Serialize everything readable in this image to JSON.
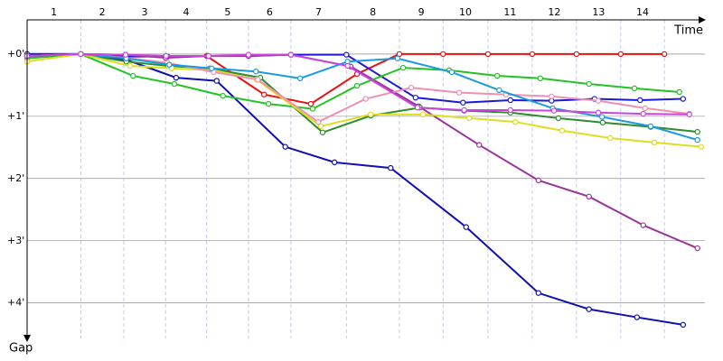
{
  "chart_data": {
    "type": "line",
    "x_label": "Time",
    "y_label": "Gap",
    "laps": [
      "1",
      "2",
      "3",
      "4",
      "5",
      "6",
      "7",
      "8",
      "9",
      "10",
      "11",
      "12",
      "13",
      "14"
    ],
    "lap_boundaries": [
      0,
      0.86,
      1.55,
      2.22,
      2.88,
      3.55,
      4.23,
      5.12,
      5.97,
      6.67,
      7.39,
      8.1,
      8.81,
      9.52,
      10.22
    ],
    "xlim": [
      0,
      10.87
    ],
    "ylim": [
      -0.55,
      4.57
    ],
    "yticks": [
      {
        "value": 0,
        "label": "+0'"
      },
      {
        "value": 1,
        "label": "+1'"
      },
      {
        "value": 2,
        "label": "+2'"
      },
      {
        "value": 3,
        "label": "+3'"
      },
      {
        "value": 4,
        "label": "+4'"
      }
    ],
    "grid": true,
    "series": [
      {
        "color": "#e81010",
        "x": [
          0,
          0.86,
          1.55,
          2.22,
          2.88,
          3.8,
          4.55,
          5.29,
          5.97,
          6.67,
          7.39,
          8.1,
          8.81,
          9.52,
          10.22
        ],
        "values": [
          0.03,
          0,
          0.03,
          0.04,
          0.03,
          0.65,
          0.8,
          0.32,
          0,
          0,
          0,
          0,
          0,
          0,
          0
        ]
      },
      {
        "color": "#1010b0",
        "x": [
          0,
          0.86,
          1.59,
          2.39,
          3.04,
          4.14,
          4.93,
          5.83,
          7.04,
          8.2,
          9.01,
          9.78,
          10.52
        ],
        "values": [
          0,
          0,
          0.09,
          0.38,
          0.43,
          1.49,
          1.74,
          1.83,
          2.78,
          3.84,
          4.1,
          4.23,
          4.35
        ]
      },
      {
        "color": "#1a1ad8",
        "x": [
          0,
          0.86,
          1.59,
          2.25,
          2.9,
          3.55,
          4.23,
          5.12,
          6.23,
          6.99,
          7.75,
          8.41,
          9.1,
          9.83,
          10.52
        ],
        "values": [
          0,
          0,
          0.04,
          0.04,
          0.03,
          0.03,
          0.01,
          0.01,
          0.7,
          0.78,
          0.74,
          0.75,
          0.72,
          0.74,
          0.72
        ]
      },
      {
        "color": "#993399",
        "x": [
          0,
          0.86,
          1.58,
          2.22,
          2.9,
          3.55,
          4.23,
          5.19,
          6.28,
          7.25,
          8.2,
          9.01,
          9.88,
          10.75
        ],
        "values": [
          0.03,
          0,
          0.01,
          0.06,
          0.03,
          0.03,
          0.01,
          0.2,
          0.84,
          1.46,
          2.03,
          2.29,
          2.75,
          3.12
        ]
      },
      {
        "color": "#22c322",
        "x": [
          0,
          0.86,
          1.7,
          2.36,
          3.14,
          3.87,
          4.58,
          5.29,
          6.03,
          6.77,
          7.54,
          8.23,
          9.01,
          9.74,
          10.46
        ],
        "values": [
          0.07,
          0,
          0.35,
          0.48,
          0.67,
          0.8,
          0.88,
          0.51,
          0.22,
          0.26,
          0.35,
          0.39,
          0.48,
          0.55,
          0.61
        ]
      },
      {
        "color": "#2e8b2e",
        "x": [
          0,
          0.86,
          1.59,
          2.26,
          2.93,
          3.74,
          4.74,
          5.51,
          6.3,
          7.01,
          7.75,
          8.52,
          9.23,
          10.0,
          10.75
        ],
        "values": [
          0.04,
          0,
          0.12,
          0.19,
          0.23,
          0.38,
          1.26,
          0.99,
          0.86,
          0.91,
          0.94,
          1.03,
          1.1,
          1.17,
          1.25
        ]
      },
      {
        "color": "#dddd22",
        "x": [
          0,
          0.86,
          1.65,
          2.32,
          2.99,
          3.68,
          4.71,
          5.51,
          6.35,
          7.09,
          7.83,
          8.58,
          9.35,
          10.06,
          10.81
        ],
        "values": [
          0.12,
          0,
          0.19,
          0.23,
          0.26,
          0.41,
          1.16,
          0.97,
          0.97,
          1.03,
          1.09,
          1.23,
          1.35,
          1.42,
          1.49
        ]
      },
      {
        "color": "#f090b0",
        "x": [
          0,
          0.86,
          1.58,
          2.25,
          2.99,
          3.7,
          4.67,
          5.43,
          6.16,
          6.93,
          7.68,
          8.41,
          9.16,
          9.91,
          10.62
        ],
        "values": [
          0.03,
          0,
          0.06,
          0.14,
          0.29,
          0.41,
          1.09,
          0.72,
          0.54,
          0.62,
          0.65,
          0.68,
          0.75,
          0.87,
          0.96
        ]
      },
      {
        "color": "#1a9ae0",
        "x": [
          0,
          0.86,
          1.59,
          2.28,
          2.96,
          3.67,
          4.38,
          5.14,
          5.94,
          6.81,
          7.57,
          8.43,
          9.22,
          10.0,
          10.75
        ],
        "values": [
          0.03,
          0,
          0.07,
          0.17,
          0.23,
          0.28,
          0.39,
          0.12,
          0.07,
          0.29,
          0.58,
          0.87,
          1.01,
          1.16,
          1.38
        ]
      },
      {
        "color": "#cc44dd",
        "x": [
          0,
          0.86,
          1.58,
          2.23,
          2.91,
          3.55,
          4.23,
          5.14,
          6.26,
          7.01,
          7.75,
          8.45,
          9.16,
          9.88,
          10.62
        ],
        "values": [
          0.03,
          0,
          0.01,
          0.03,
          0.03,
          0.01,
          0.01,
          0.19,
          0.86,
          0.9,
          0.9,
          0.91,
          0.94,
          0.96,
          0.97
        ]
      }
    ]
  }
}
